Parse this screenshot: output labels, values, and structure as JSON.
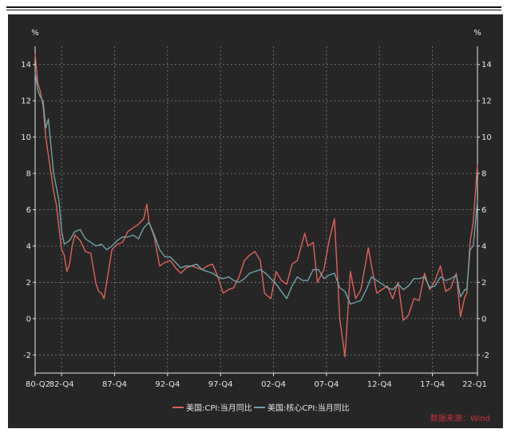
{
  "chart_data": {
    "type": "line",
    "y_unit_label": "%",
    "ylim": [
      -3,
      15
    ],
    "y_ticks": [
      -2,
      0,
      2,
      4,
      6,
      8,
      10,
      12,
      14
    ],
    "xlim": [
      1980.25,
      2022.0
    ],
    "x_ticks": [
      {
        "label": "80-Q2",
        "year": 1980.25
      },
      {
        "label": "82-Q4",
        "year": 1982.75
      },
      {
        "label": "87-Q4",
        "year": 1987.75
      },
      {
        "label": "92-Q4",
        "year": 1992.75
      },
      {
        "label": "97-Q4",
        "year": 1997.75
      },
      {
        "label": "02-Q4",
        "year": 2002.75
      },
      {
        "label": "07-Q4",
        "year": 2007.75
      },
      {
        "label": "12-Q4",
        "year": 2012.75
      },
      {
        "label": "17-Q4",
        "year": 2017.75
      },
      {
        "label": "22-Q1",
        "year": 2022.0
      }
    ],
    "grid": true,
    "legend_position": "bottom",
    "source_note": "数据来源：Wind",
    "colors": {
      "background": "#262626",
      "cpi": "#e0625a",
      "core": "#6fa3a8",
      "grid": "#8a8a8a",
      "axis": "#e6e6e6",
      "source": "#c8323a"
    },
    "series": [
      {
        "name": "美国:CPI:当月同比",
        "color": "#e0625a",
        "x": [
          1980.25,
          1980.5,
          1980.75,
          1981.0,
          1981.25,
          1981.5,
          1981.75,
          1982.0,
          1982.25,
          1982.5,
          1982.75,
          1983.0,
          1983.25,
          1983.5,
          1983.75,
          1984.0,
          1984.5,
          1985.0,
          1985.5,
          1986.0,
          1986.25,
          1986.5,
          1986.75,
          1987.0,
          1987.5,
          1988.0,
          1988.5,
          1989.0,
          1989.5,
          1990.0,
          1990.5,
          1990.8,
          1991.0,
          1991.5,
          1992.0,
          1992.5,
          1993.0,
          1993.5,
          1994.0,
          1994.5,
          1995.0,
          1995.5,
          1996.0,
          1996.5,
          1997.0,
          1997.5,
          1998.0,
          1998.5,
          1999.0,
          1999.5,
          2000.0,
          2000.5,
          2001.0,
          2001.5,
          2001.9,
          2002.5,
          2003.0,
          2003.5,
          2004.0,
          2004.5,
          2005.0,
          2005.7,
          2006.0,
          2006.5,
          2006.9,
          2007.5,
          2008.0,
          2008.5,
          2009.0,
          2009.5,
          2010.0,
          2010.5,
          2011.0,
          2011.7,
          2012.0,
          2012.5,
          2013.0,
          2013.5,
          2014.0,
          2014.5,
          2015.0,
          2015.5,
          2016.0,
          2016.5,
          2017.0,
          2017.5,
          2018.0,
          2018.5,
          2019.0,
          2019.5,
          2020.0,
          2020.4,
          2020.8,
          2021.0,
          2021.3,
          2021.6,
          2022.0
        ],
        "values": [
          14.6,
          13.0,
          12.5,
          11.7,
          10.0,
          9.0,
          8.0,
          7.0,
          6.3,
          5.0,
          3.8,
          3.5,
          2.6,
          3.0,
          4.0,
          4.6,
          4.3,
          3.7,
          3.6,
          1.9,
          1.5,
          1.4,
          1.1,
          2.0,
          3.8,
          4.1,
          4.2,
          4.8,
          5.0,
          5.2,
          5.5,
          6.3,
          5.3,
          4.5,
          2.9,
          3.1,
          3.2,
          2.8,
          2.5,
          2.8,
          2.9,
          2.8,
          2.7,
          2.9,
          3.0,
          2.3,
          1.4,
          1.6,
          1.7,
          2.3,
          3.2,
          3.5,
          3.7,
          3.2,
          1.4,
          1.1,
          2.6,
          2.1,
          1.9,
          3.0,
          3.2,
          4.7,
          4.0,
          4.2,
          2.0,
          2.7,
          4.3,
          5.5,
          0.0,
          -2.1,
          2.6,
          1.1,
          1.6,
          3.9,
          2.9,
          1.4,
          1.6,
          1.8,
          1.1,
          2.0,
          -0.1,
          0.2,
          1.1,
          1.0,
          2.5,
          1.6,
          2.1,
          2.9,
          1.5,
          1.7,
          2.5,
          0.1,
          1.2,
          1.4,
          4.2,
          5.3,
          8.5
        ]
      },
      {
        "name": "美国:核心CPI:当月同比",
        "color": "#6fa3a8",
        "x": [
          1980.25,
          1980.5,
          1980.75,
          1981.0,
          1981.25,
          1981.5,
          1981.75,
          1982.0,
          1982.5,
          1982.75,
          1983.0,
          1983.5,
          1984.0,
          1984.5,
          1985.0,
          1985.5,
          1986.0,
          1986.5,
          1987.0,
          1987.5,
          1988.0,
          1988.5,
          1989.0,
          1989.5,
          1990.0,
          1990.5,
          1991.0,
          1991.5,
          1992.0,
          1992.5,
          1993.0,
          1993.5,
          1994.0,
          1994.5,
          1995.0,
          1995.5,
          1996.0,
          1996.5,
          1997.0,
          1997.5,
          1998.0,
          1998.5,
          1999.0,
          1999.5,
          2000.0,
          2000.5,
          2001.0,
          2001.5,
          2002.0,
          2002.5,
          2003.0,
          2003.5,
          2004.0,
          2004.5,
          2005.0,
          2005.5,
          2006.0,
          2006.5,
          2007.0,
          2007.5,
          2008.0,
          2008.5,
          2009.0,
          2009.5,
          2010.0,
          2010.5,
          2011.0,
          2011.5,
          2012.0,
          2012.5,
          2013.0,
          2013.5,
          2014.0,
          2014.5,
          2015.0,
          2015.5,
          2016.0,
          2016.5,
          2017.0,
          2017.5,
          2018.0,
          2018.5,
          2019.0,
          2019.5,
          2020.0,
          2020.4,
          2020.8,
          2021.0,
          2021.3,
          2021.6,
          2022.0
        ],
        "values": [
          13.6,
          12.6,
          12.2,
          12.0,
          10.5,
          11.0,
          9.5,
          8.0,
          6.5,
          4.8,
          4.1,
          4.3,
          4.8,
          4.9,
          4.4,
          4.2,
          4.0,
          4.1,
          3.8,
          4.0,
          4.3,
          4.5,
          4.5,
          4.6,
          4.4,
          5.0,
          5.3,
          4.6,
          3.8,
          3.4,
          3.4,
          3.1,
          2.8,
          2.9,
          2.9,
          3.0,
          2.7,
          2.6,
          2.5,
          2.3,
          2.2,
          2.3,
          2.1,
          2.0,
          2.2,
          2.5,
          2.6,
          2.7,
          2.5,
          2.2,
          1.9,
          1.5,
          1.1,
          1.8,
          2.3,
          2.1,
          2.1,
          2.7,
          2.7,
          2.2,
          2.4,
          2.5,
          1.7,
          1.5,
          0.8,
          0.9,
          1.0,
          1.6,
          2.3,
          2.1,
          1.9,
          1.7,
          1.6,
          1.9,
          1.6,
          1.8,
          2.2,
          2.2,
          2.3,
          1.7,
          1.8,
          2.3,
          2.1,
          2.2,
          2.4,
          1.2,
          1.6,
          1.6,
          3.8,
          4.0,
          6.5
        ]
      }
    ]
  }
}
